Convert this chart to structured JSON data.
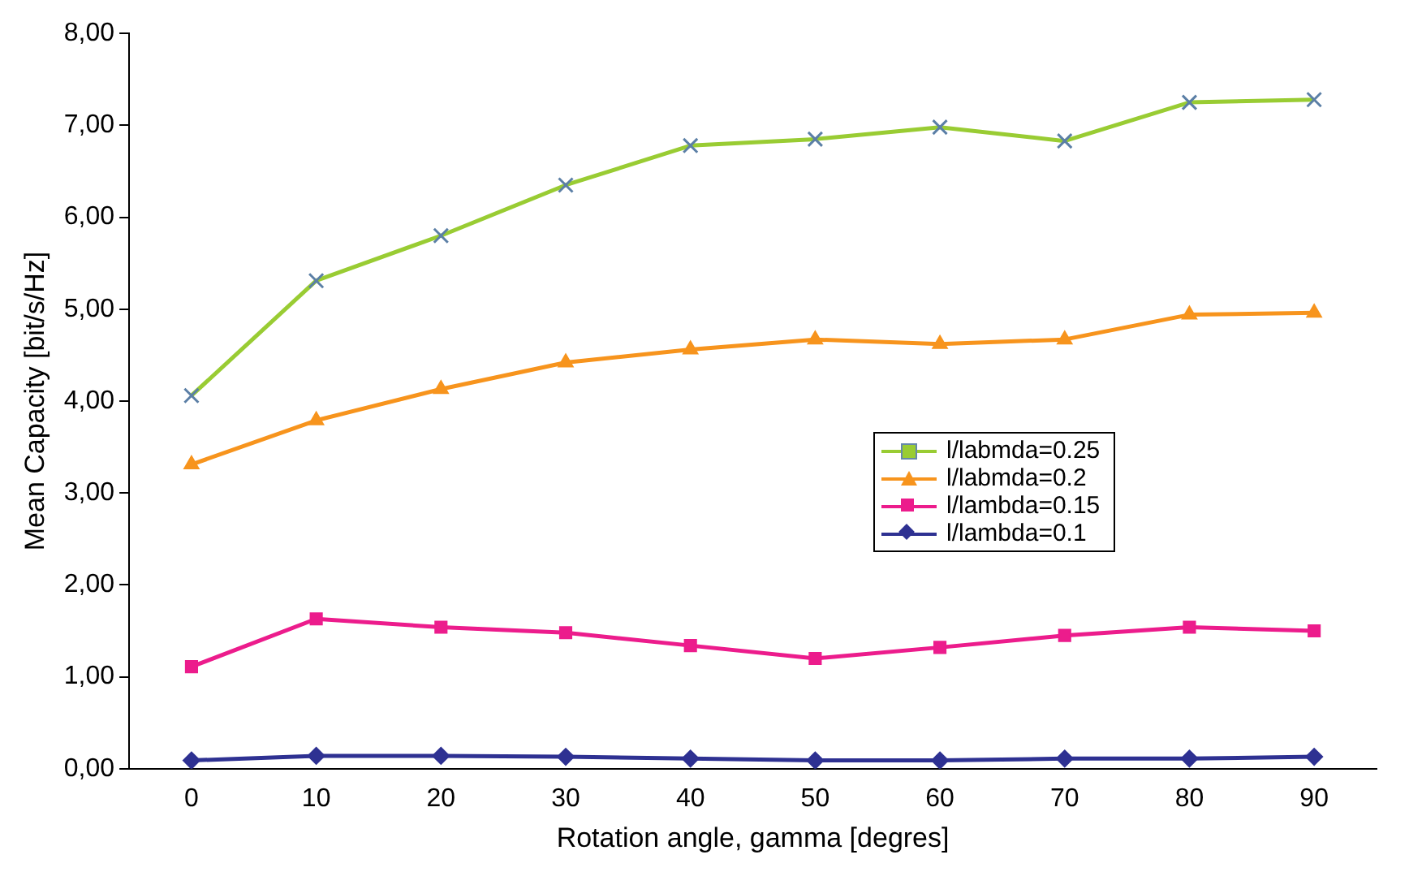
{
  "chart_data": {
    "type": "line",
    "xlabel": "Rotation angle, gamma [degres]",
    "ylabel": "Mean Capacity [bit/s/Hz]",
    "categories": [
      "0",
      "10",
      "20",
      "30",
      "40",
      "50",
      "60",
      "70",
      "80",
      "90"
    ],
    "ylim": [
      0,
      8
    ],
    "yticks": [
      {
        "value": 0,
        "label": "0,00"
      },
      {
        "value": 1,
        "label": "1,00"
      },
      {
        "value": 2,
        "label": "2,00"
      },
      {
        "value": 3,
        "label": "3,00"
      },
      {
        "value": 4,
        "label": "4,00"
      },
      {
        "value": 5,
        "label": "5,00"
      },
      {
        "value": 6,
        "label": "6,00"
      },
      {
        "value": 7,
        "label": "7,00"
      },
      {
        "value": 8,
        "label": "8,00"
      }
    ],
    "grid": false,
    "legend": "right",
    "line_style": "solid",
    "series": [
      {
        "name": "l/labmda=0.25",
        "color": "#99cc33",
        "marker": "cross",
        "values": [
          4.06,
          5.31,
          5.8,
          6.35,
          6.78,
          6.85,
          6.98,
          6.83,
          7.25,
          7.28
        ]
      },
      {
        "name": "l/labmda=0.2",
        "color": "#f7941d",
        "marker": "triangle",
        "values": [
          3.31,
          3.79,
          4.13,
          4.42,
          4.56,
          4.67,
          4.62,
          4.67,
          4.94,
          4.96
        ]
      },
      {
        "name": "l/lambda=0.15",
        "color": "#ec1c8c",
        "marker": "square",
        "values": [
          1.11,
          1.63,
          1.54,
          1.48,
          1.34,
          1.2,
          1.32,
          1.45,
          1.54,
          1.5
        ]
      },
      {
        "name": "l/lambda=0.1",
        "color": "#2e3192",
        "marker": "diamond",
        "values": [
          0.09,
          0.14,
          0.14,
          0.13,
          0.11,
          0.09,
          0.09,
          0.11,
          0.11,
          0.13
        ]
      }
    ]
  }
}
